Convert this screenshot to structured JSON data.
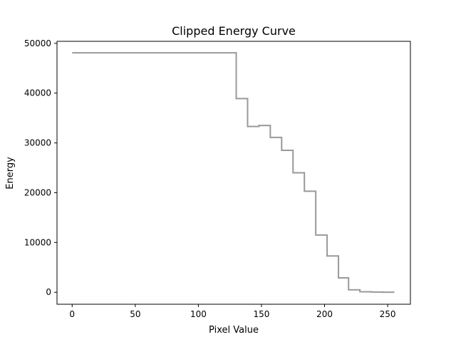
{
  "chart_data": {
    "type": "line",
    "title": "Clipped Energy Curve",
    "xlabel": "Pixel Value",
    "ylabel": "Energy",
    "xlim": [
      -12,
      268
    ],
    "ylim": [
      -2400,
      50400
    ],
    "xticks": [
      0,
      50,
      100,
      150,
      200,
      250
    ],
    "yticks": [
      0,
      10000,
      20000,
      30000,
      40000,
      50000
    ],
    "grid": false,
    "series": [
      {
        "color": "#999999",
        "step": true,
        "x": [
          0,
          130,
          139,
          148,
          157,
          166,
          175,
          184,
          193,
          202,
          211,
          219,
          228,
          237,
          246,
          255
        ],
        "y": [
          48100,
          38900,
          33300,
          33500,
          31100,
          28500,
          24000,
          20300,
          11500,
          7300,
          2900,
          500,
          100,
          50,
          20,
          0
        ]
      }
    ]
  }
}
